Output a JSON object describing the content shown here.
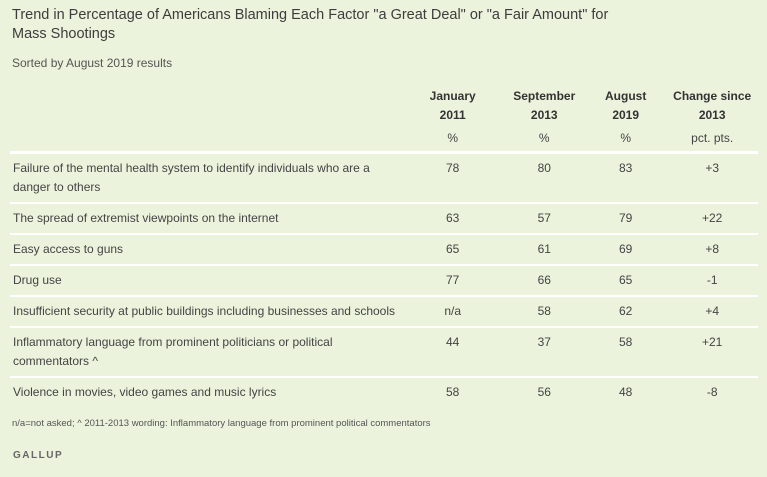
{
  "title": "Trend in Percentage of Americans Blaming Each Factor \"a Great Deal\" or \"a Fair Amount\" for Mass Shootings",
  "subtitle": "Sorted by August 2019 results",
  "chart_data": {
    "type": "table",
    "columns": [
      {
        "line1": "January",
        "line2": "2011",
        "unit": "%"
      },
      {
        "line1": "September",
        "line2": "2013",
        "unit": "%"
      },
      {
        "line1": "August",
        "line2": "2019",
        "unit": "%"
      },
      {
        "line1": "Change since",
        "line2": "2013",
        "unit": "pct. pts."
      }
    ],
    "rows": [
      {
        "label": "Failure of the mental health system to identify individuals who are a danger to others",
        "values": [
          "78",
          "80",
          "83",
          "+3"
        ]
      },
      {
        "label": "The spread of extremist viewpoints on the internet",
        "values": [
          "63",
          "57",
          "79",
          "+22"
        ]
      },
      {
        "label": "Easy access to guns",
        "values": [
          "65",
          "61",
          "69",
          "+8"
        ]
      },
      {
        "label": "Drug use",
        "values": [
          "77",
          "66",
          "65",
          "-1"
        ]
      },
      {
        "label": "Insufficient security at public buildings including businesses and schools",
        "values": [
          "n/a",
          "58",
          "62",
          "+4"
        ]
      },
      {
        "label": "Inflammatory language from prominent politicians or political commentators ^",
        "values": [
          "44",
          "37",
          "58",
          "+21"
        ]
      },
      {
        "label": "Violence in movies, video games and music lyrics",
        "values": [
          "58",
          "56",
          "48",
          "-8"
        ]
      }
    ]
  },
  "footnote": "n/a=not asked; ^ 2011-2013 wording: Inflammatory language from prominent political commentators",
  "source": "GALLUP",
  "colors": {
    "background": "#ebf3dc",
    "divider": "#ffffff"
  }
}
